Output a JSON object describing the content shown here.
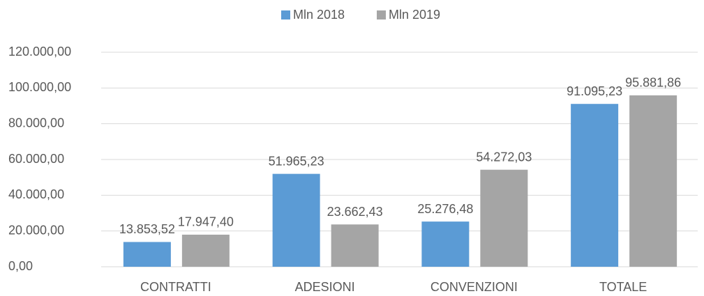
{
  "chart_data": {
    "type": "bar",
    "categories": [
      "CONTRATTI",
      "ADESIONI",
      "CONVENZIONI",
      "TOTALE"
    ],
    "series": [
      {
        "name": "Mln 2018",
        "color": "#5b9bd5",
        "values": [
          13853.52,
          51965.23,
          25276.48,
          91095.23
        ],
        "value_labels": [
          "13.853,52",
          "51.965,23",
          "25.276,48",
          "91.095,23"
        ]
      },
      {
        "name": "Mln 2019",
        "color": "#a5a5a5",
        "values": [
          17947.4,
          23662.43,
          54272.03,
          95881.86
        ],
        "value_labels": [
          "17.947,40",
          "23.662,43",
          "54.272,03",
          "95.881,86"
        ]
      }
    ],
    "ylim": [
      0,
      120000
    ],
    "yticks": [
      {
        "value": 0,
        "label": "0,00"
      },
      {
        "value": 20000,
        "label": "20.000,00"
      },
      {
        "value": 40000,
        "label": "40.000,00"
      },
      {
        "value": 60000,
        "label": "60.000,00"
      },
      {
        "value": 80000,
        "label": "80.000,00"
      },
      {
        "value": 100000,
        "label": "100.000,00"
      },
      {
        "value": 120000,
        "label": "120.000,00"
      }
    ],
    "grid": true,
    "legend": "top"
  }
}
